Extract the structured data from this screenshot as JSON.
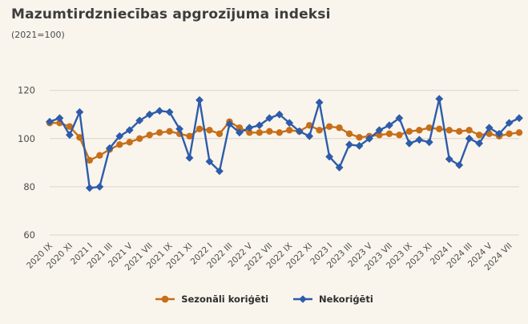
{
  "chart_data": {
    "type": "line",
    "title": "Mazumtirdzniecības apgrozījuma indeksi",
    "subtitle": "(2021=100)",
    "ylim": [
      60,
      120
    ],
    "y_ticks": [
      120,
      100,
      80,
      60
    ],
    "grid": "horizontal",
    "legend_position": "bottom",
    "grid_color": "#dad5c9",
    "tick_color": "#4c4c4c",
    "background_color": "#f9f5ec",
    "x_tick_labels": [
      "2020 IX",
      "2020 XI",
      "2021 I",
      "2021 III",
      "2021 V",
      "2021 VII",
      "2021 IX",
      "2021 XI",
      "2022 I",
      "2022 III",
      "2022 V",
      "2022 VII",
      "2022 IX",
      "2022 XI",
      "2023 I",
      "2023 III",
      "2023 V",
      "2023 VII",
      "2023 IX",
      "2023 XI",
      "2024 I",
      "2024 III",
      "2024 V",
      "2024 VII"
    ],
    "x_tick_every": 2,
    "categories": [
      "2020 IX",
      "2020 X",
      "2020 XI",
      "2020 XII",
      "2021 I",
      "2021 II",
      "2021 III",
      "2021 IV",
      "2021 V",
      "2021 VI",
      "2021 VII",
      "2021 VIII",
      "2021 IX",
      "2021 X",
      "2021 XI",
      "2021 XII",
      "2022 I",
      "2022 II",
      "2022 III",
      "2022 IV",
      "2022 V",
      "2022 VI",
      "2022 VII",
      "2022 VIII",
      "2022 IX",
      "2022 X",
      "2022 XI",
      "2022 XII",
      "2023 I",
      "2023 II",
      "2023 III",
      "2023 IV",
      "2023 V",
      "2023 VI",
      "2023 VII",
      "2023 VIII",
      "2023 IX",
      "2023 X",
      "2023 XI",
      "2023 XII",
      "2024 I",
      "2024 II",
      "2024 III",
      "2024 IV",
      "2024 V",
      "2024 VI",
      "2024 VII",
      "2024 VIII"
    ],
    "series": [
      {
        "id": "sezonali-korigeti",
        "name": "Sezonāli koriģēti",
        "marker": "circle",
        "color": "#c86e19",
        "values": [
          106.5,
          106.5,
          105,
          100.5,
          91,
          93,
          95.5,
          97.5,
          98.5,
          100,
          101.5,
          102.5,
          103,
          102,
          101,
          104,
          103.5,
          102,
          107,
          104.5,
          102.5,
          102.5,
          103,
          102.5,
          103.5,
          103,
          105.5,
          103.5,
          105,
          104.5,
          102,
          100.5,
          101,
          101.5,
          102,
          101.5,
          103,
          103.5,
          104.5,
          104,
          103.5,
          103,
          103.5,
          101.5,
          102,
          101,
          102,
          102.5
        ]
      },
      {
        "id": "nekorigeti",
        "name": "Nekoriģēti",
        "marker": "diamond",
        "color": "#2d5caa",
        "values": [
          107,
          108.5,
          101.5,
          111,
          79.5,
          80,
          96,
          101,
          103.5,
          107.5,
          110,
          111.5,
          111,
          104,
          92,
          116,
          90.5,
          86.5,
          106,
          102.5,
          104.5,
          105.5,
          108.5,
          110,
          106.5,
          103,
          101,
          115,
          92.5,
          88,
          97.5,
          97,
          100,
          103.5,
          105.5,
          108.5,
          98,
          99.5,
          98.5,
          116.5,
          91.5,
          89,
          100,
          98,
          104.5,
          102,
          106.5,
          108.5
        ]
      }
    ]
  },
  "legend": {
    "items": [
      {
        "label": "Sezonāli koriģēti",
        "marker": "circle-marker-icon",
        "color": "#c86e19"
      },
      {
        "label": "Nekoriģēti",
        "marker": "diamond-marker-icon",
        "color": "#2d5caa"
      }
    ]
  }
}
